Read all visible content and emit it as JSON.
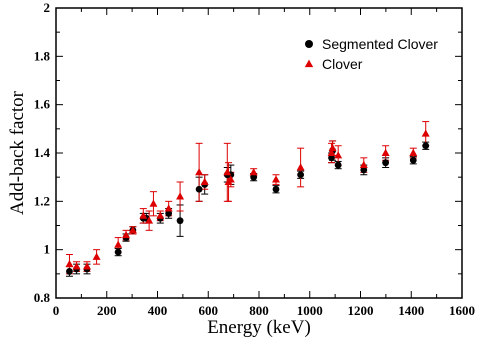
{
  "chart_data": {
    "type": "scatter",
    "xlabel": "Energy (keV)",
    "ylabel": "Add-back factor",
    "xlim": [
      0,
      1600
    ],
    "ylim": [
      0.8,
      2.0
    ],
    "x_ticks": [
      0,
      200,
      400,
      600,
      800,
      1000,
      1200,
      1400,
      1600
    ],
    "y_ticks": [
      "0.8",
      "1",
      "1.2",
      "1.4",
      "1.6",
      "1.8",
      "2"
    ],
    "grid": false,
    "legend_position": "top-right",
    "series": [
      {
        "name": "Segmented Clover",
        "marker": "circle",
        "color": "#000000",
        "points": [
          {
            "x": 53,
            "y": 0.91,
            "err": 0.02
          },
          {
            "x": 81,
            "y": 0.92,
            "err": 0.02
          },
          {
            "x": 122,
            "y": 0.92,
            "err": 0.02
          },
          {
            "x": 245,
            "y": 0.99,
            "err": 0.015
          },
          {
            "x": 276,
            "y": 1.05,
            "err": 0.015
          },
          {
            "x": 303,
            "y": 1.08,
            "err": 0.015
          },
          {
            "x": 344,
            "y": 1.13,
            "err": 0.02
          },
          {
            "x": 356,
            "y": 1.13,
            "err": 0.02
          },
          {
            "x": 411,
            "y": 1.13,
            "err": 0.02
          },
          {
            "x": 444,
            "y": 1.15,
            "err": 0.02
          },
          {
            "x": 489,
            "y": 1.12,
            "err": 0.065
          },
          {
            "x": 564,
            "y": 1.25,
            "err": 0.05
          },
          {
            "x": 586,
            "y": 1.27,
            "err": 0.04
          },
          {
            "x": 675,
            "y": 1.31,
            "err": 0.03
          },
          {
            "x": 689,
            "y": 1.31,
            "err": 0.04
          },
          {
            "x": 779,
            "y": 1.3,
            "err": 0.015
          },
          {
            "x": 867,
            "y": 1.25,
            "err": 0.015
          },
          {
            "x": 964,
            "y": 1.31,
            "err": 0.015
          },
          {
            "x": 1086,
            "y": 1.38,
            "err": 0.02
          },
          {
            "x": 1090,
            "y": 1.41,
            "err": 0.04
          },
          {
            "x": 1112,
            "y": 1.35,
            "err": 0.015
          },
          {
            "x": 1213,
            "y": 1.33,
            "err": 0.02
          },
          {
            "x": 1299,
            "y": 1.36,
            "err": 0.02
          },
          {
            "x": 1408,
            "y": 1.37,
            "err": 0.015
          },
          {
            "x": 1457,
            "y": 1.43,
            "err": 0.015
          }
        ]
      },
      {
        "name": "Clover",
        "marker": "triangle",
        "color": "#dd0000",
        "points": [
          {
            "x": 53,
            "y": 0.94,
            "err": 0.04
          },
          {
            "x": 81,
            "y": 0.93,
            "err": 0.02
          },
          {
            "x": 122,
            "y": 0.93,
            "err": 0.02
          },
          {
            "x": 160,
            "y": 0.97,
            "err": 0.03
          },
          {
            "x": 245,
            "y": 1.02,
            "err": 0.03
          },
          {
            "x": 276,
            "y": 1.06,
            "err": 0.02
          },
          {
            "x": 303,
            "y": 1.08,
            "err": 0.015
          },
          {
            "x": 344,
            "y": 1.14,
            "err": 0.03
          },
          {
            "x": 367,
            "y": 1.12,
            "err": 0.04
          },
          {
            "x": 384,
            "y": 1.19,
            "err": 0.05
          },
          {
            "x": 411,
            "y": 1.14,
            "err": 0.02
          },
          {
            "x": 444,
            "y": 1.17,
            "err": 0.03
          },
          {
            "x": 489,
            "y": 1.22,
            "err": 0.06
          },
          {
            "x": 564,
            "y": 1.32,
            "err": 0.12
          },
          {
            "x": 586,
            "y": 1.28,
            "err": 0.03
          },
          {
            "x": 675,
            "y": 1.32,
            "err": 0.12
          },
          {
            "x": 680,
            "y": 1.28,
            "err": 0.08
          },
          {
            "x": 689,
            "y": 1.29,
            "err": 0.03
          },
          {
            "x": 779,
            "y": 1.32,
            "err": 0.015
          },
          {
            "x": 867,
            "y": 1.29,
            "err": 0.02
          },
          {
            "x": 964,
            "y": 1.34,
            "err": 0.08
          },
          {
            "x": 1086,
            "y": 1.4,
            "err": 0.04
          },
          {
            "x": 1090,
            "y": 1.42,
            "err": 0.03
          },
          {
            "x": 1112,
            "y": 1.39,
            "err": 0.04
          },
          {
            "x": 1213,
            "y": 1.35,
            "err": 0.03
          },
          {
            "x": 1299,
            "y": 1.4,
            "err": 0.03
          },
          {
            "x": 1408,
            "y": 1.4,
            "err": 0.02
          },
          {
            "x": 1457,
            "y": 1.48,
            "err": 0.05
          }
        ]
      }
    ]
  }
}
